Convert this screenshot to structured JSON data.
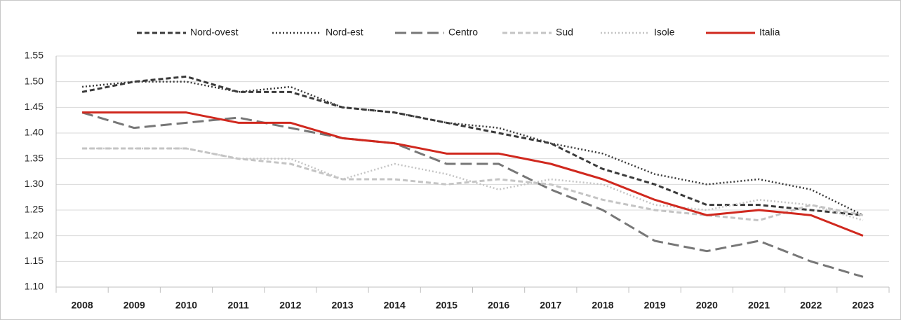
{
  "chart_data": {
    "type": "line",
    "categories": [
      "2008",
      "2009",
      "2010",
      "2011",
      "2012",
      "2013",
      "2014",
      "2015",
      "2016",
      "2017",
      "2018",
      "2019",
      "2020",
      "2021",
      "2022",
      "2023"
    ],
    "series": [
      {
        "name": "Nord-ovest",
        "color": "#3a3a3a",
        "line_style": "dashed",
        "values": [
          1.48,
          1.5,
          1.51,
          1.48,
          1.48,
          1.45,
          1.44,
          1.42,
          1.4,
          1.38,
          1.33,
          1.3,
          1.26,
          1.26,
          1.25,
          1.24
        ]
      },
      {
        "name": "Nord-est",
        "color": "#3a3a3a",
        "line_style": "dotted",
        "values": [
          1.49,
          1.5,
          1.5,
          1.48,
          1.49,
          1.45,
          1.44,
          1.42,
          1.41,
          1.38,
          1.36,
          1.32,
          1.3,
          1.31,
          1.29,
          1.24
        ]
      },
      {
        "name": "Centro",
        "color": "#777777",
        "line_style": "long-dashed",
        "values": [
          1.44,
          1.41,
          1.42,
          1.43,
          1.41,
          1.39,
          1.38,
          1.34,
          1.34,
          1.29,
          1.25,
          1.19,
          1.17,
          1.19,
          1.15,
          1.12
        ]
      },
      {
        "name": "Sud",
        "color": "#c4c4c4",
        "line_style": "dashed",
        "values": [
          1.37,
          1.37,
          1.37,
          1.35,
          1.34,
          1.31,
          1.31,
          1.3,
          1.31,
          1.3,
          1.27,
          1.25,
          1.24,
          1.23,
          1.26,
          1.24
        ]
      },
      {
        "name": "Isole",
        "color": "#c4c4c4",
        "line_style": "dotted",
        "values": [
          1.37,
          1.37,
          1.37,
          1.35,
          1.35,
          1.31,
          1.34,
          1.32,
          1.29,
          1.31,
          1.3,
          1.26,
          1.25,
          1.27,
          1.26,
          1.23
        ]
      },
      {
        "name": "Italia",
        "color": "#d0281e",
        "line_style": "solid",
        "values": [
          1.44,
          1.44,
          1.44,
          1.42,
          1.42,
          1.39,
          1.38,
          1.36,
          1.36,
          1.34,
          1.31,
          1.27,
          1.24,
          1.25,
          1.24,
          1.2
        ]
      }
    ],
    "ylim": [
      1.1,
      1.55
    ],
    "yticks": [
      {
        "value": 1.1,
        "label": "1.10"
      },
      {
        "value": 1.15,
        "label": "1.15"
      },
      {
        "value": 1.2,
        "label": "1.20"
      },
      {
        "value": 1.25,
        "label": "1.25"
      },
      {
        "value": 1.3,
        "label": "1.30"
      },
      {
        "value": 1.35,
        "label": "1.35"
      },
      {
        "value": 1.4,
        "label": "1.40"
      },
      {
        "value": 1.45,
        "label": "1.45"
      },
      {
        "value": 1.5,
        "label": "1.50"
      },
      {
        "value": 1.55,
        "label": "1.55"
      }
    ],
    "grid": true,
    "legend": "top"
  }
}
